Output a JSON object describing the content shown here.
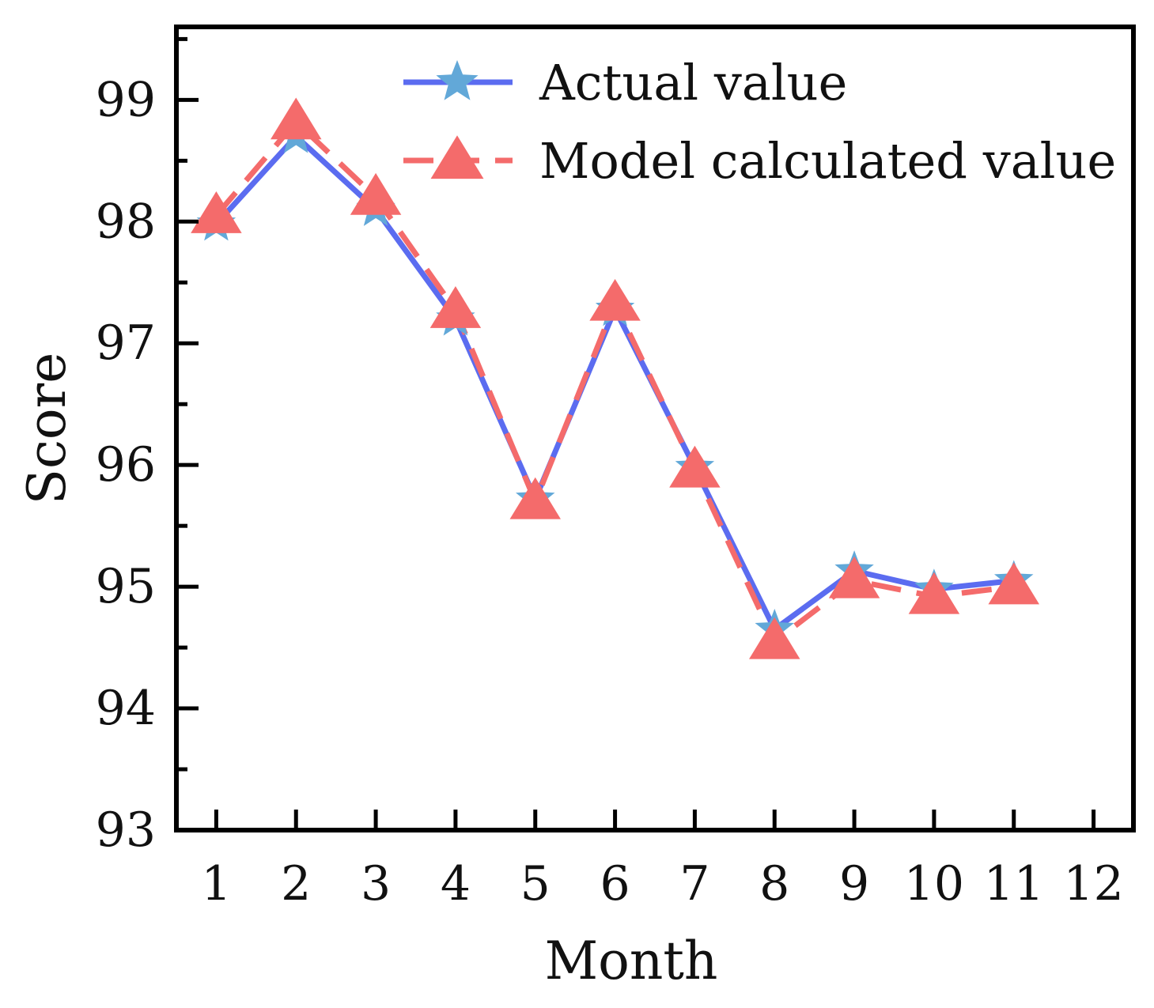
{
  "chart_data": {
    "type": "line",
    "title": "",
    "xlabel": "Month",
    "ylabel": "Score",
    "xlim": [
      0.5,
      12.5
    ],
    "ylim": [
      93,
      99.6
    ],
    "xticks": [
      "1",
      "2",
      "3",
      "4",
      "5",
      "6",
      "7",
      "8",
      "9",
      "10",
      "11",
      "12"
    ],
    "yticks": [
      "93",
      "94",
      "95",
      "96",
      "97",
      "98",
      "99"
    ],
    "grid": false,
    "legend_position": "top-right",
    "series": [
      {
        "name": "Actual value",
        "marker": "star",
        "line_style": "solid",
        "line_color": "#5b6cf0",
        "marker_color": "#62a8d8",
        "x": [
          1,
          2,
          3,
          4,
          5,
          6,
          7,
          8,
          9,
          10,
          11
        ],
        "values": [
          97.98,
          98.7,
          98.1,
          97.2,
          95.72,
          97.28,
          95.98,
          94.65,
          95.13,
          94.98,
          95.05
        ]
      },
      {
        "name": "Model calculated value",
        "marker": "triangle",
        "line_style": "dashed",
        "line_color": "#f46b6b",
        "marker_color": "#f46b6b",
        "x": [
          1,
          2,
          3,
          4,
          5,
          6,
          7,
          8,
          9,
          10,
          11
        ],
        "values": [
          98.05,
          98.82,
          98.2,
          97.27,
          95.7,
          97.33,
          95.96,
          94.55,
          95.05,
          94.92,
          95.0
        ]
      }
    ]
  }
}
